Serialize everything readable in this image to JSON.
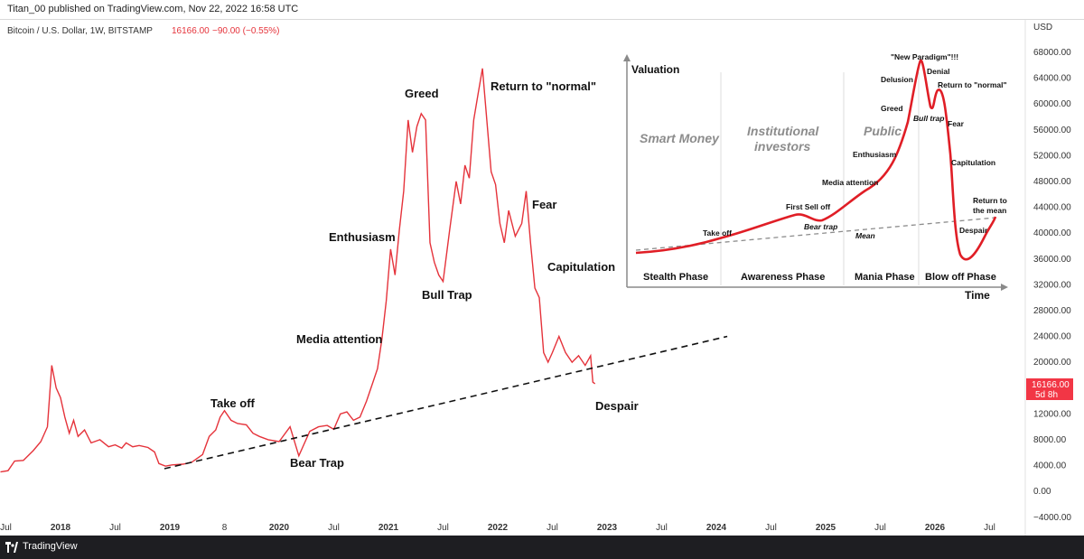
{
  "publish_line": "Titan_00 published on TradingView.com, Nov 22, 2022 16:58 UTC",
  "symbol": {
    "name": "Bitcoin / U.S. Dollar, 1W, BITSTAMP",
    "price": "16166.00",
    "change": "−90.00 (−0.55%)"
  },
  "price_label": {
    "value": "16166.00",
    "countdown": "5d 8h",
    "color": "#f23645"
  },
  "footer": {
    "brand": "TradingView"
  },
  "colors": {
    "line": "#e5333b",
    "trend": "#111111",
    "inset_curve": "#e01e26"
  },
  "chart_data": {
    "type": "line",
    "currency": "USD",
    "ylim": [
      -4000,
      70000
    ],
    "y_ticks": [
      "68000.00",
      "64000.00",
      "60000.00",
      "56000.00",
      "52000.00",
      "48000.00",
      "44000.00",
      "40000.00",
      "36000.00",
      "32000.00",
      "28000.00",
      "24000.00",
      "20000.00",
      "16000.00",
      "12000.00",
      "8000.00",
      "4000.00",
      "0.00",
      "−4000.00"
    ],
    "x_ticks": [
      "Jul",
      "2018",
      "Jul",
      "2019",
      "8",
      "2020",
      "Jul",
      "2021",
      "Jul",
      "2022",
      "Jul",
      "2023",
      "Jul",
      "2024",
      "Jul",
      "2025",
      "Jul",
      "2026",
      "Jul"
    ],
    "x": [
      2017.45,
      2017.52,
      2017.58,
      2017.66,
      2017.75,
      2017.82,
      2017.88,
      2017.92,
      2017.96,
      2018.0,
      2018.04,
      2018.08,
      2018.12,
      2018.16,
      2018.22,
      2018.28,
      2018.36,
      2018.44,
      2018.5,
      2018.56,
      2018.6,
      2018.66,
      2018.72,
      2018.8,
      2018.86,
      2018.9,
      2018.96,
      2019.02,
      2019.12,
      2019.2,
      2019.3,
      2019.36,
      2019.42,
      2019.46,
      2019.5,
      2019.56,
      2019.62,
      2019.7,
      2019.76,
      2019.82,
      2019.9,
      2020.0,
      2020.1,
      2020.18,
      2020.22,
      2020.28,
      2020.36,
      2020.44,
      2020.5,
      2020.56,
      2020.62,
      2020.68,
      2020.74,
      2020.8,
      2020.86,
      2020.9,
      2020.94,
      2020.98,
      2021.02,
      2021.06,
      2021.1,
      2021.14,
      2021.18,
      2021.22,
      2021.26,
      2021.3,
      2021.34,
      2021.38,
      2021.42,
      2021.46,
      2021.5,
      2021.56,
      2021.62,
      2021.66,
      2021.7,
      2021.74,
      2021.78,
      2021.82,
      2021.86,
      2021.9,
      2021.94,
      2021.98,
      2022.02,
      2022.06,
      2022.1,
      2022.16,
      2022.22,
      2022.26,
      2022.3,
      2022.34,
      2022.38,
      2022.42,
      2022.46,
      2022.5,
      2022.56,
      2022.62,
      2022.68,
      2022.74,
      2022.8,
      2022.85,
      2022.87,
      2022.89
    ],
    "values": [
      2500,
      2700,
      4200,
      4300,
      5800,
      7200,
      9500,
      19000,
      15500,
      14000,
      11000,
      8500,
      10500,
      8000,
      9000,
      7000,
      7500,
      6400,
      6700,
      6200,
      7000,
      6400,
      6600,
      6300,
      5600,
      3800,
      3400,
      3600,
      3700,
      4000,
      5200,
      8000,
      9000,
      11000,
      12000,
      10500,
      10000,
      9800,
      8500,
      8000,
      7500,
      7200,
      9500,
      5000,
      6500,
      8800,
      9500,
      9700,
      9100,
      11500,
      11800,
      10500,
      11000,
      13500,
      16500,
      18500,
      23000,
      29000,
      37000,
      33000,
      40000,
      46000,
      57000,
      52000,
      56000,
      58000,
      57000,
      38000,
      35000,
      33000,
      32000,
      40000,
      47500,
      44000,
      50000,
      48000,
      57000,
      61000,
      65000,
      57000,
      49000,
      47000,
      41000,
      38000,
      43000,
      39000,
      41000,
      46000,
      38000,
      31000,
      29500,
      21000,
      19500,
      21000,
      23500,
      21000,
      19500,
      20500,
      19000,
      20500,
      16400,
      16166
    ],
    "annotations": [
      "Take off",
      "Bear Trap",
      "Media attention",
      "Enthusiasm",
      "Greed",
      "Bull Trap",
      "Return to \"normal\"",
      "Fear",
      "Capitulation",
      "Despair"
    ],
    "trendline": {
      "x": [
        2018.95,
        2024.1
      ],
      "y": [
        3000,
        23500
      ],
      "style": "dashed"
    },
    "inset": {
      "title_y": "Valuation",
      "title_x": "Time",
      "groups": [
        "Smart Money",
        "Institutional investors",
        "Public"
      ],
      "phases": [
        "Stealth Phase",
        "Awareness Phase",
        "Mania Phase",
        "Blow off Phase"
      ],
      "annotations": [
        "\"New Paradigm\"!!!",
        "Delusion",
        "Denial",
        "Return to \"normal\"",
        "Greed",
        "Bull trap",
        "Fear",
        "Enthusiasm",
        "Capitulation",
        "Media attention",
        "Return to the mean",
        "First Sell off",
        "Bear trap",
        "Take off",
        "Despair",
        "Mean"
      ]
    }
  }
}
